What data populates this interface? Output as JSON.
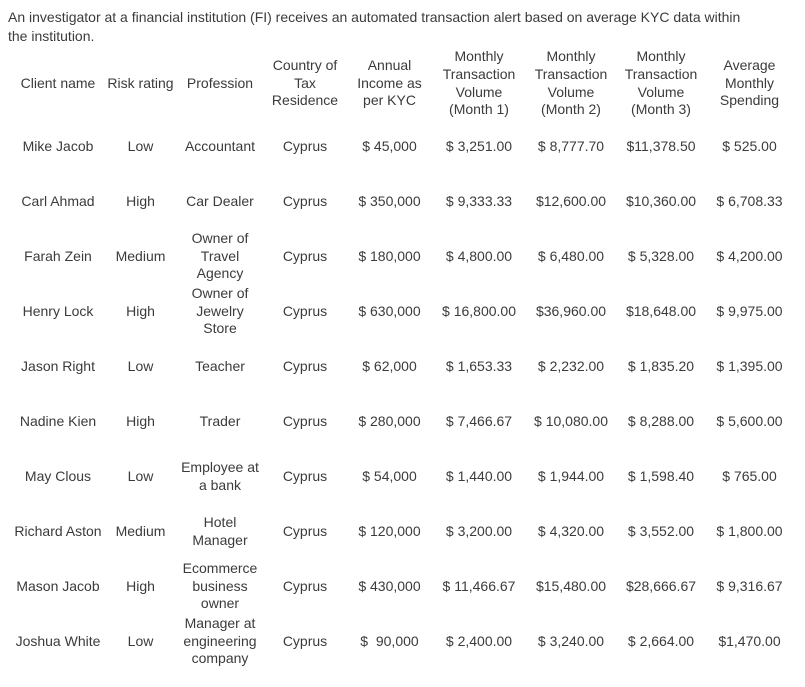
{
  "page": {
    "intro": "An investigator at a financial institution (FI) receives an automated transaction alert based on average KYC data within\nthe institution."
  },
  "colors": {
    "text": "#3b3b3b",
    "page_background": "#ffffff"
  },
  "table": {
    "headers": [
      "Client name",
      "Risk rating",
      "Profession",
      "Country of\nTax\nResidence",
      "Annual\nIncome as\nper KYC",
      "Monthly\nTransaction\nVolume\n(Month 1)",
      "Monthly\nTransaction\nVolume\n(Month 2)",
      "Monthly\nTransaction\nVolume\n(Month 3)",
      "Average\nMonthly\nSpending"
    ],
    "rows": [
      {
        "cells": [
          "Mike Jacob",
          "Low",
          "Accountant",
          "Cyprus",
          "$ 45,000",
          "$ 3,251.00",
          "$ 8,777.70",
          "$11,378.50",
          "$ 525.00"
        ]
      },
      {
        "cells": [
          "Carl Ahmad",
          "High",
          "Car Dealer",
          "Cyprus",
          "$ 350,000",
          "$ 9,333.33",
          "$12,600.00",
          "$10,360.00",
          "$ 6,708.33"
        ]
      },
      {
        "cells": [
          "Farah Zein",
          "Medium",
          "Owner of\nTravel\nAgency",
          "Cyprus",
          "$ 180,000",
          "$ 4,800.00",
          "$ 6,480.00",
          "$ 5,328.00",
          "$ 4,200.00"
        ]
      },
      {
        "cells": [
          "Henry Lock",
          "High",
          "Owner of\nJewelry\nStore",
          "Cyprus",
          "$ 630,000",
          "$ 16,800.00",
          "$36,960.00",
          "$18,648.00",
          "$ 9,975.00"
        ]
      },
      {
        "cells": [
          "Jason Right",
          "Low",
          "Teacher",
          "Cyprus",
          "$ 62,000",
          "$ 1,653.33",
          "$ 2,232.00",
          "$ 1,835.20",
          "$ 1,395.00"
        ]
      },
      {
        "cells": [
          "Nadine Kien",
          "High",
          "Trader",
          "Cyprus",
          "$ 280,000",
          "$ 7,466.67",
          "$ 10,080.00",
          "$ 8,288.00",
          "$ 5,600.00"
        ]
      },
      {
        "cells": [
          "May Clous",
          "Low",
          "Employee at\na bank",
          "Cyprus",
          "$ 54,000",
          "$ 1,440.00",
          "$ 1,944.00",
          "$ 1,598.40",
          "$ 765.00"
        ]
      },
      {
        "cells": [
          "Richard Aston",
          "Medium",
          "Hotel\nManager",
          "Cyprus",
          "$ 120,000",
          "$ 3,200.00",
          "$ 4,320.00",
          "$ 3,552.00",
          "$ 1,800.00"
        ]
      },
      {
        "cells": [
          "Mason Jacob",
          "High",
          "Ecommerce\nbusiness\nowner",
          "Cyprus",
          "$ 430,000",
          "$ 11,466.67",
          "$15,480.00",
          "$28,666.67",
          "$ 9,316.67"
        ]
      },
      {
        "cells": [
          "Joshua White",
          "Low",
          "Manager at\nengineering\ncompany",
          "Cyprus",
          "$  90,000",
          "$ 2,400.00",
          "$ 3,240.00",
          "$ 2,664.00",
          "$1,470.00"
        ]
      }
    ]
  }
}
